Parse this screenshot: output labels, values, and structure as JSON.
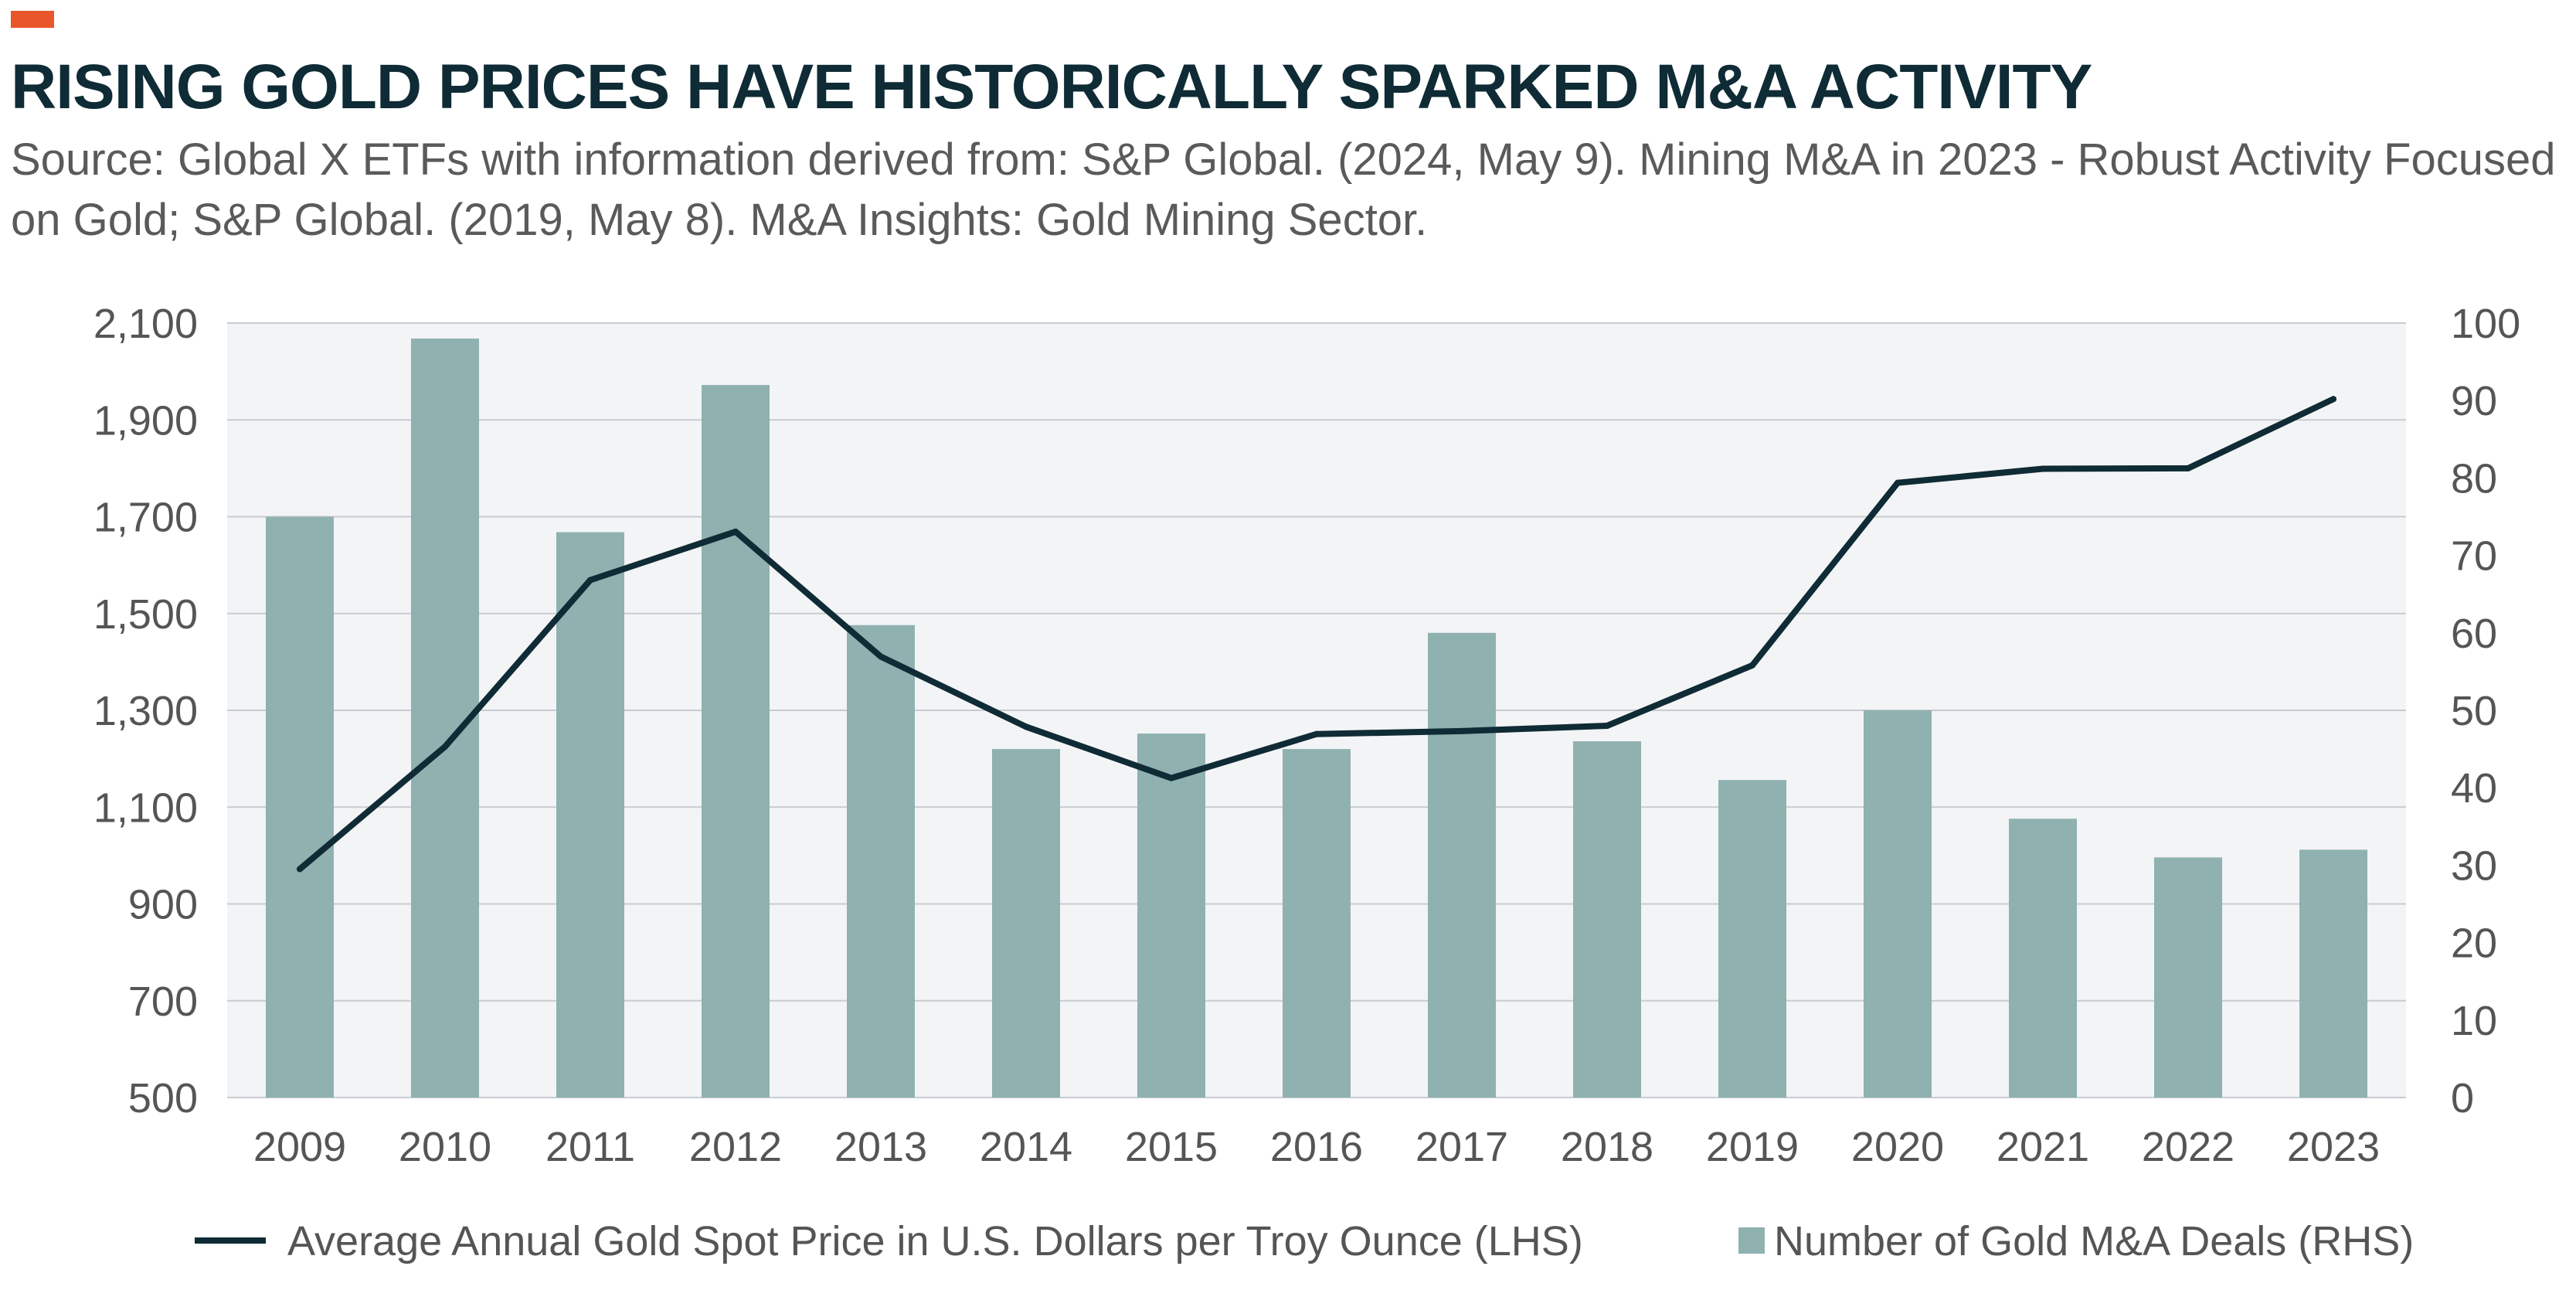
{
  "header": {
    "accent_color": "#e8562a",
    "title": "RISING GOLD PRICES HAVE HISTORICALLY SPARKED M&A ACTIVITY",
    "subtitle": "Source: Global X ETFs with information derived from: S&P Global. (2024, May 9). Mining M&A in 2023 - Robust Activity Focused on Gold; S&P Global. (2019, May 8). M&A Insights: Gold Mining Sector."
  },
  "chart_data": {
    "type": "bar",
    "combo_line": true,
    "categories": [
      "2009",
      "2010",
      "2011",
      "2012",
      "2013",
      "2014",
      "2015",
      "2016",
      "2017",
      "2018",
      "2019",
      "2020",
      "2021",
      "2022",
      "2023"
    ],
    "series": [
      {
        "name": "Number of Gold M&A Deals (RHS)",
        "type": "bar",
        "axis": "right",
        "color": "#8fb1b0",
        "values": [
          75,
          98,
          73,
          92,
          61,
          45,
          47,
          45,
          60,
          46,
          41,
          50,
          36,
          31,
          32
        ]
      },
      {
        "name": "Average Annual Gold Spot Price in U.S. Dollars per Troy Ounce (LHS)",
        "type": "line",
        "axis": "left",
        "color": "#0f2b35",
        "values": [
          972,
          1225,
          1569,
          1669,
          1411,
          1266,
          1160,
          1251,
          1257,
          1268,
          1393,
          1770,
          1799,
          1800,
          1943
        ]
      }
    ],
    "left_axis": {
      "min": 500,
      "max": 2100,
      "ticks": [
        "2,100",
        "1,900",
        "1,700",
        "1,500",
        "1,300",
        "1,100",
        "900",
        "700",
        "500"
      ]
    },
    "right_axis": {
      "min": 0,
      "max": 100,
      "ticks": [
        "100",
        "90",
        "80",
        "70",
        "60",
        "50",
        "40",
        "30",
        "20",
        "10",
        "0"
      ]
    },
    "grid": true,
    "legend_position": "bottom"
  }
}
